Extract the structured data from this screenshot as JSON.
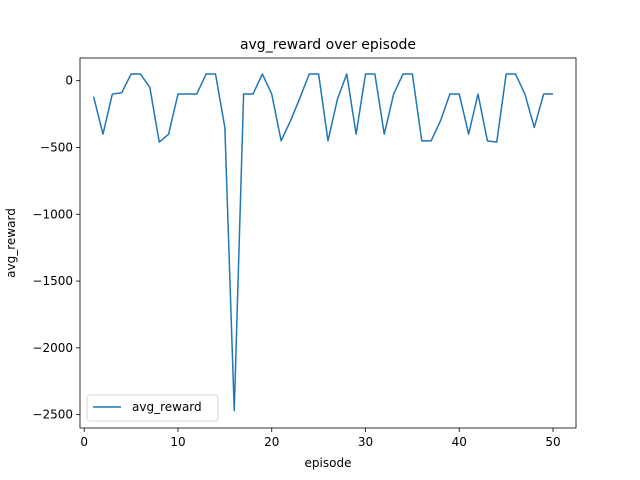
{
  "chart_data": {
    "type": "line",
    "title": "avg_reward over episode",
    "xlabel": "episode",
    "ylabel": "avg_reward",
    "xlim": [
      -0.45,
      52.45
    ],
    "ylim": [
      -2600,
      170
    ],
    "xticks": [
      0,
      10,
      20,
      30,
      40,
      50
    ],
    "yticks": [
      0,
      -500,
      -1000,
      -1500,
      -2000,
      -2500
    ],
    "xtick_labels": [
      "0",
      "10",
      "20",
      "30",
      "40",
      "50"
    ],
    "ytick_labels": [
      "0",
      "−500",
      "−1000",
      "−1500",
      "−2000",
      "−2500"
    ],
    "grid": false,
    "legend_position": "lower-left",
    "series": [
      {
        "name": "avg_reward",
        "color": "#1f77b4",
        "x": [
          1,
          2,
          3,
          4,
          5,
          6,
          7,
          8,
          9,
          10,
          11,
          12,
          13,
          14,
          15,
          16,
          17,
          18,
          19,
          20,
          21,
          22,
          23,
          24,
          25,
          26,
          27,
          28,
          29,
          30,
          31,
          32,
          33,
          34,
          35,
          36,
          37,
          38,
          39,
          40,
          41,
          42,
          43,
          44,
          45,
          46,
          47,
          48,
          49,
          50
        ],
        "y": [
          -120,
          -400,
          -100,
          -90,
          50,
          50,
          -50,
          -460,
          -400,
          -100,
          -100,
          -100,
          50,
          50,
          -350,
          -2470,
          -100,
          -100,
          50,
          -100,
          -450,
          -300,
          -130,
          50,
          50,
          -450,
          -140,
          50,
          -400,
          50,
          50,
          -400,
          -100,
          50,
          50,
          -450,
          -450,
          -300,
          -100,
          -100,
          -400,
          -100,
          -450,
          -460,
          50,
          50,
          -100,
          -350,
          -100,
          -100
        ]
      }
    ]
  }
}
